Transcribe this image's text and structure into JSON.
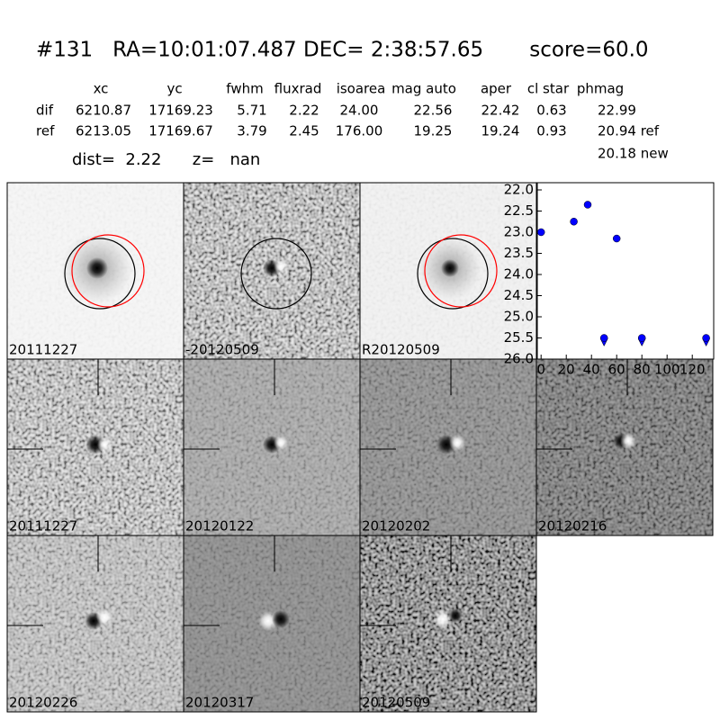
{
  "header": {
    "title": "#131   RA=10:01:07.487 DEC= 2:38:57.65       score=60.0",
    "dist": "dist=  2.22      z=   nan"
  },
  "table": {
    "columns": [
      "xc",
      "yc",
      "fwhm",
      "fluxrad",
      "isoarea",
      "mag auto",
      "aper",
      "cl star",
      "phmag"
    ],
    "rows": [
      [
        "dif",
        "6210.87",
        "17169.23",
        "5.71",
        "2.22",
        "24.00",
        "22.56",
        "22.42",
        "0.63",
        "22.99"
      ],
      [
        "ref",
        "6213.05",
        "17169.67",
        "3.79",
        "2.45",
        "176.00",
        "19.25",
        "19.24",
        "0.93",
        "20.94 ref"
      ]
    ],
    "note": "20.18 new"
  },
  "stamps": [
    {
      "label": "20111227"
    },
    {
      "label": "-20120509"
    },
    {
      "label": "R20120509"
    },
    {
      "label": "20111227",
      "color": "#ff0000"
    },
    {
      "label": "20120122"
    },
    {
      "label": "20120202"
    },
    {
      "label": "20120216"
    },
    {
      "label": "20120226"
    },
    {
      "label": "20120317"
    },
    {
      "label": "20120509"
    }
  ],
  "chart_data": {
    "type": "scatter",
    "xlim": [
      -3,
      137
    ],
    "xticks": [
      0,
      20,
      40,
      60,
      80,
      100,
      120
    ],
    "ylim": [
      26.0,
      21.83
    ],
    "yticks": [
      {
        "value": 22,
        "label": "22.0"
      },
      22.5,
      {
        "value": 23,
        "label": "23.0"
      },
      23.5,
      {
        "value": 24,
        "label": "24.0"
      },
      24.5,
      {
        "value": 25,
        "label": "25.0"
      },
      25.5,
      {
        "value": 26,
        "label": "26.0"
      }
    ],
    "series": [
      {
        "color": "#0000ff",
        "x": [
          0,
          26,
          37,
          60
        ],
        "values": [
          23.0,
          22.75,
          22.35,
          23.15
        ]
      },
      {
        "color": "#0000ff",
        "marker": "upper-limit",
        "x": [
          50,
          80,
          131
        ],
        "values": [
          25.5,
          25.5,
          25.5
        ]
      }
    ]
  }
}
